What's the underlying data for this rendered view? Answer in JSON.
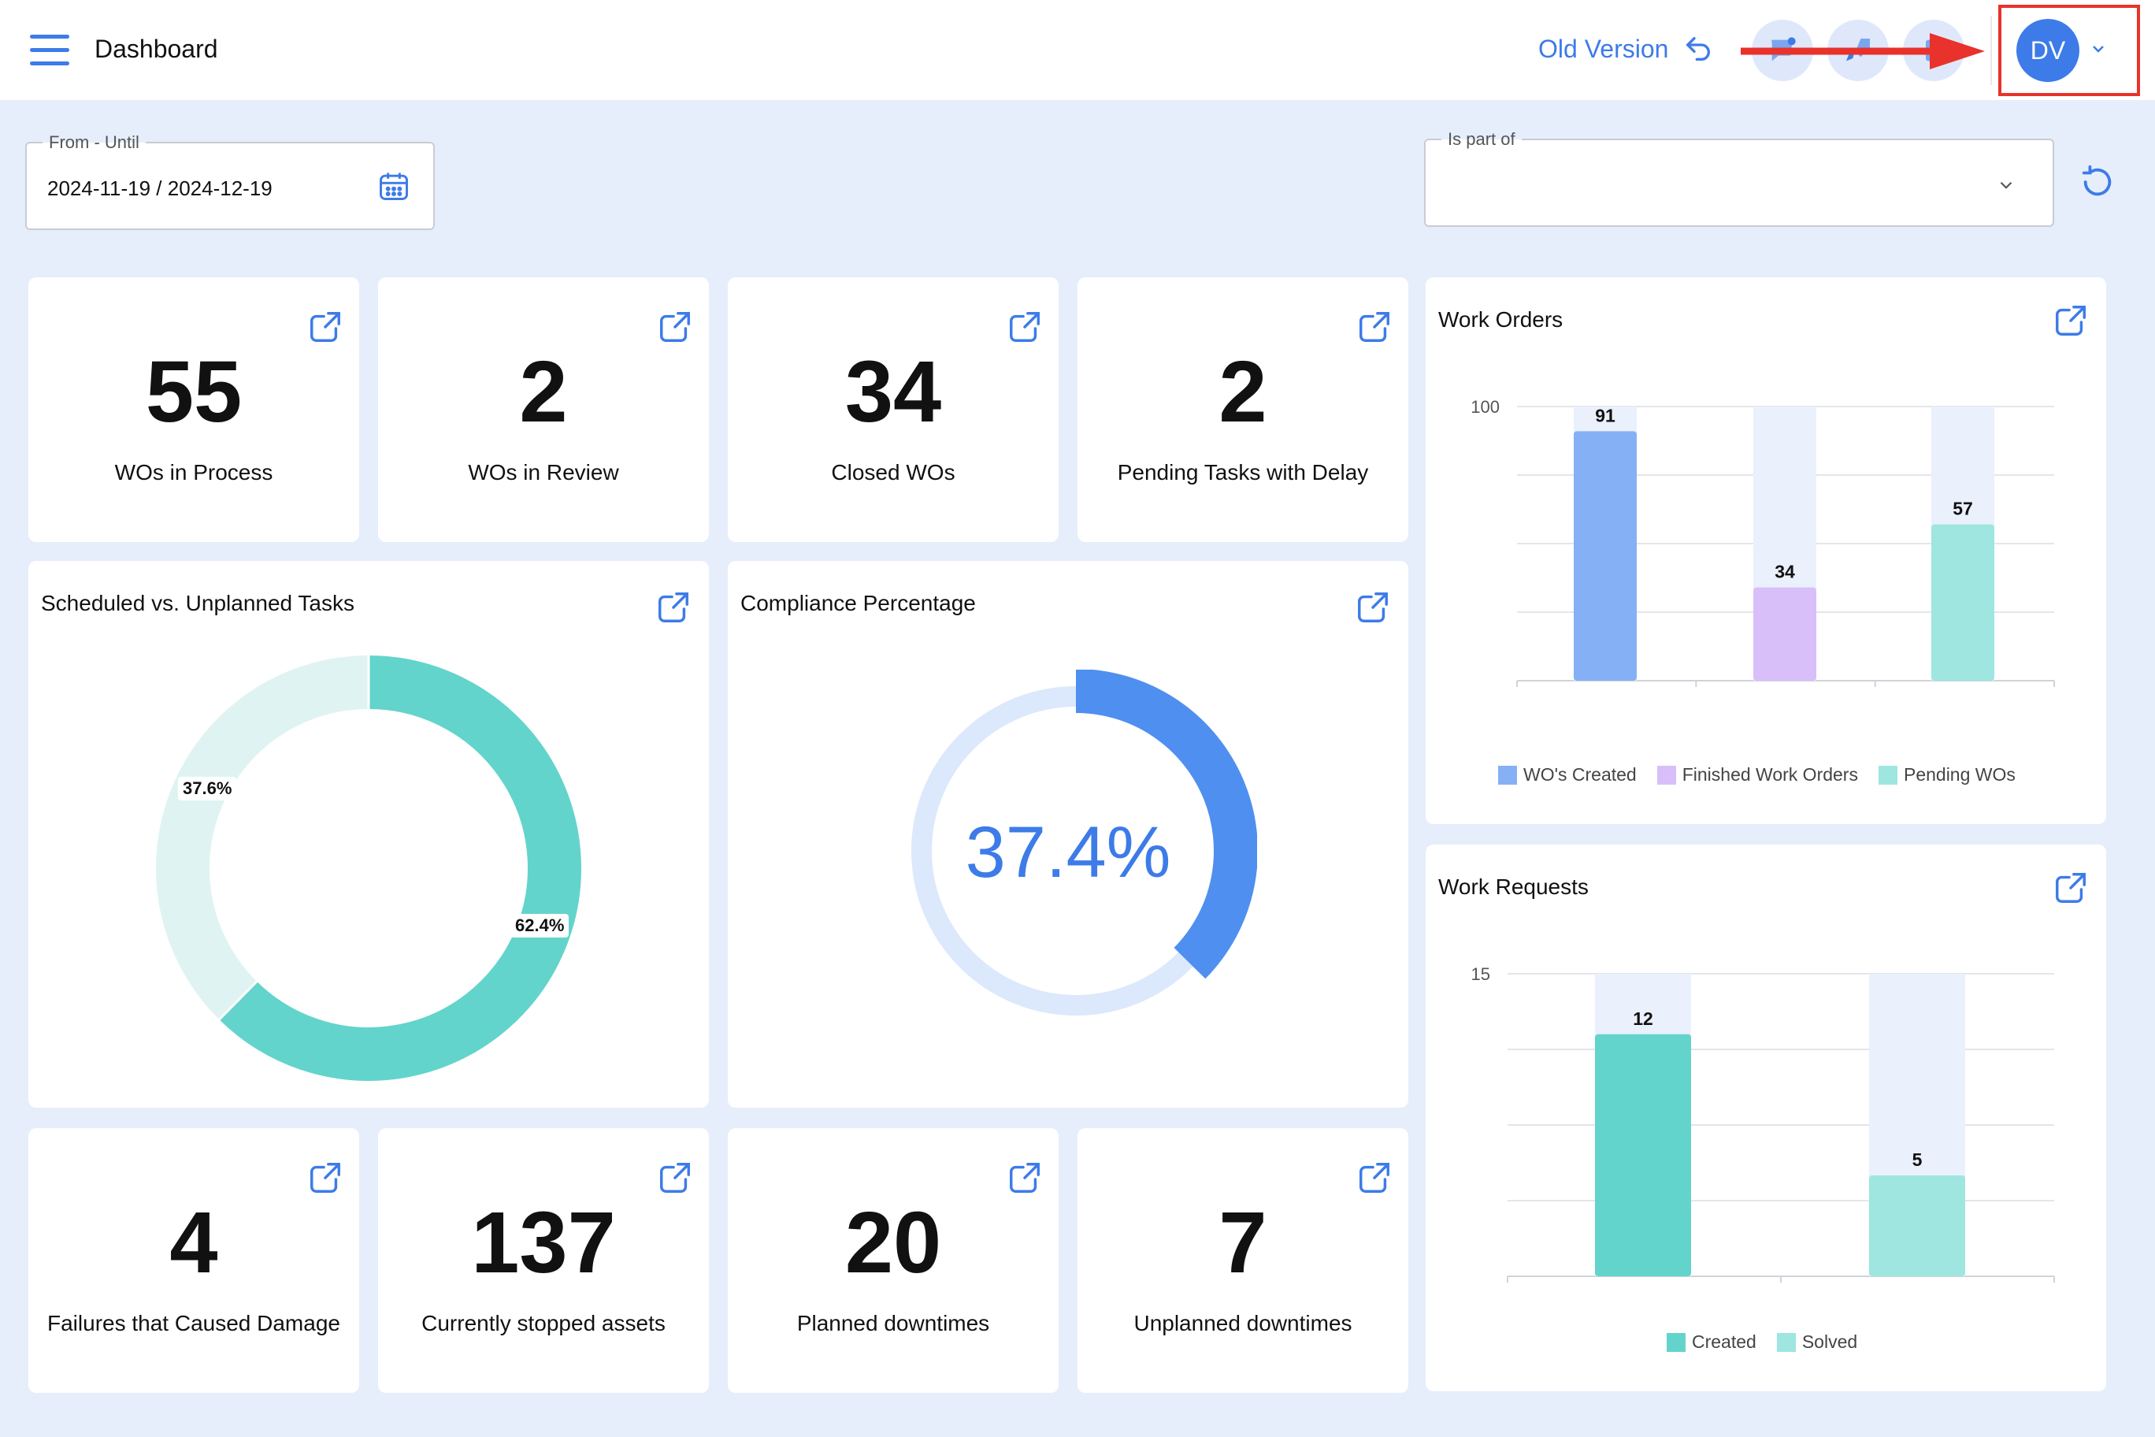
{
  "header": {
    "title": "Dashboard",
    "old_version_label": "Old Version",
    "avatar_initials": "DV"
  },
  "filters": {
    "date_label": "From - Until",
    "date_value": "2024-11-19 / 2024-12-19",
    "part_of_label": "Is part of",
    "part_of_value": ""
  },
  "kpis_top": [
    {
      "value": "55",
      "label": "WOs in Process"
    },
    {
      "value": "2",
      "label": "WOs in Review"
    },
    {
      "value": "34",
      "label": "Closed WOs"
    },
    {
      "value": "2",
      "label": "Pending Tasks with Delay"
    }
  ],
  "kpis_bottom": [
    {
      "value": "4",
      "label": "Failures that Caused Damage"
    },
    {
      "value": "137",
      "label": "Currently stopped assets"
    },
    {
      "value": "20",
      "label": "Planned downtimes"
    },
    {
      "value": "7",
      "label": "Unplanned downtimes"
    }
  ],
  "scheduled": {
    "title": "Scheduled vs. Unplanned Tasks",
    "scheduled_pct": "62.4%",
    "unplanned_pct": "37.6%",
    "scheduled_value": 62.4,
    "colors": {
      "scheduled": "#63d4cb",
      "unplanned": "#dff4f2"
    }
  },
  "compliance": {
    "title": "Compliance Percentage",
    "value_label": "37.4%",
    "value": 37.4,
    "colors": {
      "fill": "#4f8ff0",
      "track": "#dce8fb"
    }
  },
  "chart_data": [
    {
      "type": "bar",
      "title": "Work Orders",
      "categories": [
        "WO's Created",
        "Finished Work Orders",
        "Pending WOs"
      ],
      "values": [
        91,
        34,
        57
      ],
      "ylim": [
        0,
        100
      ],
      "ytick_labels": [
        "100"
      ],
      "colors": [
        "#86b0f5",
        "#d8bffa",
        "#9ee6df"
      ],
      "legend": [
        "WO's Created",
        "Finished Work Orders",
        "Pending WOs"
      ],
      "legend_position": "bottom"
    },
    {
      "type": "bar",
      "title": "Work Requests",
      "categories": [
        "Created",
        "Solved"
      ],
      "values": [
        12,
        5
      ],
      "ylim": [
        0,
        15
      ],
      "ytick_labels": [
        "15"
      ],
      "colors": [
        "#63d4cb",
        "#9ee6df"
      ],
      "legend": [
        "Created",
        "Solved"
      ],
      "legend_position": "bottom"
    }
  ]
}
